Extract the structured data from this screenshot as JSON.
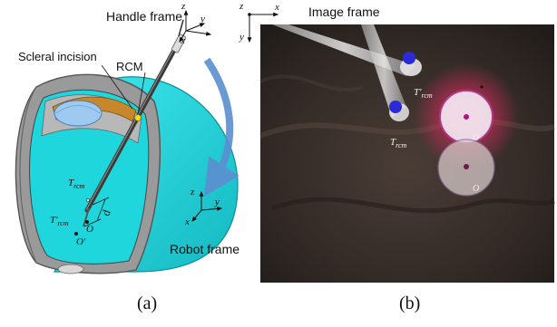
{
  "panel_a": {
    "caption": "(a)",
    "handle_frame": "Handle frame",
    "robot_frame": "Robot frame",
    "scleral_incision": "Scleral incision",
    "rcm": "RCM",
    "trcm_main": "T",
    "trcm_sub": "rcm",
    "trcm_prime_main": "T'",
    "trcm_prime_sub": "rcm",
    "d": "d",
    "o": "O",
    "o_prime": "O'",
    "axes": {
      "z": "z",
      "y": "y",
      "x": "x"
    }
  },
  "panel_b": {
    "caption": "(b)",
    "image_frame": "Image frame",
    "axes": {
      "z": "z",
      "x": "x",
      "y": "y"
    },
    "trcm_prime_main": "T'",
    "trcm_prime_sub": "rcm",
    "trcm_main": "T",
    "trcm_sub": "rcm",
    "o_upper": "O",
    "o_lower": "O"
  },
  "colors": {
    "eye_cyan": "#1fd6dc",
    "eye_shell": "#8c8c8c",
    "arrow_blue": "#5b8fd0",
    "photo_bg": "#3a2f2a",
    "marker_blue": "#2a2bd6",
    "glow_pink": "#ff2a6a"
  }
}
